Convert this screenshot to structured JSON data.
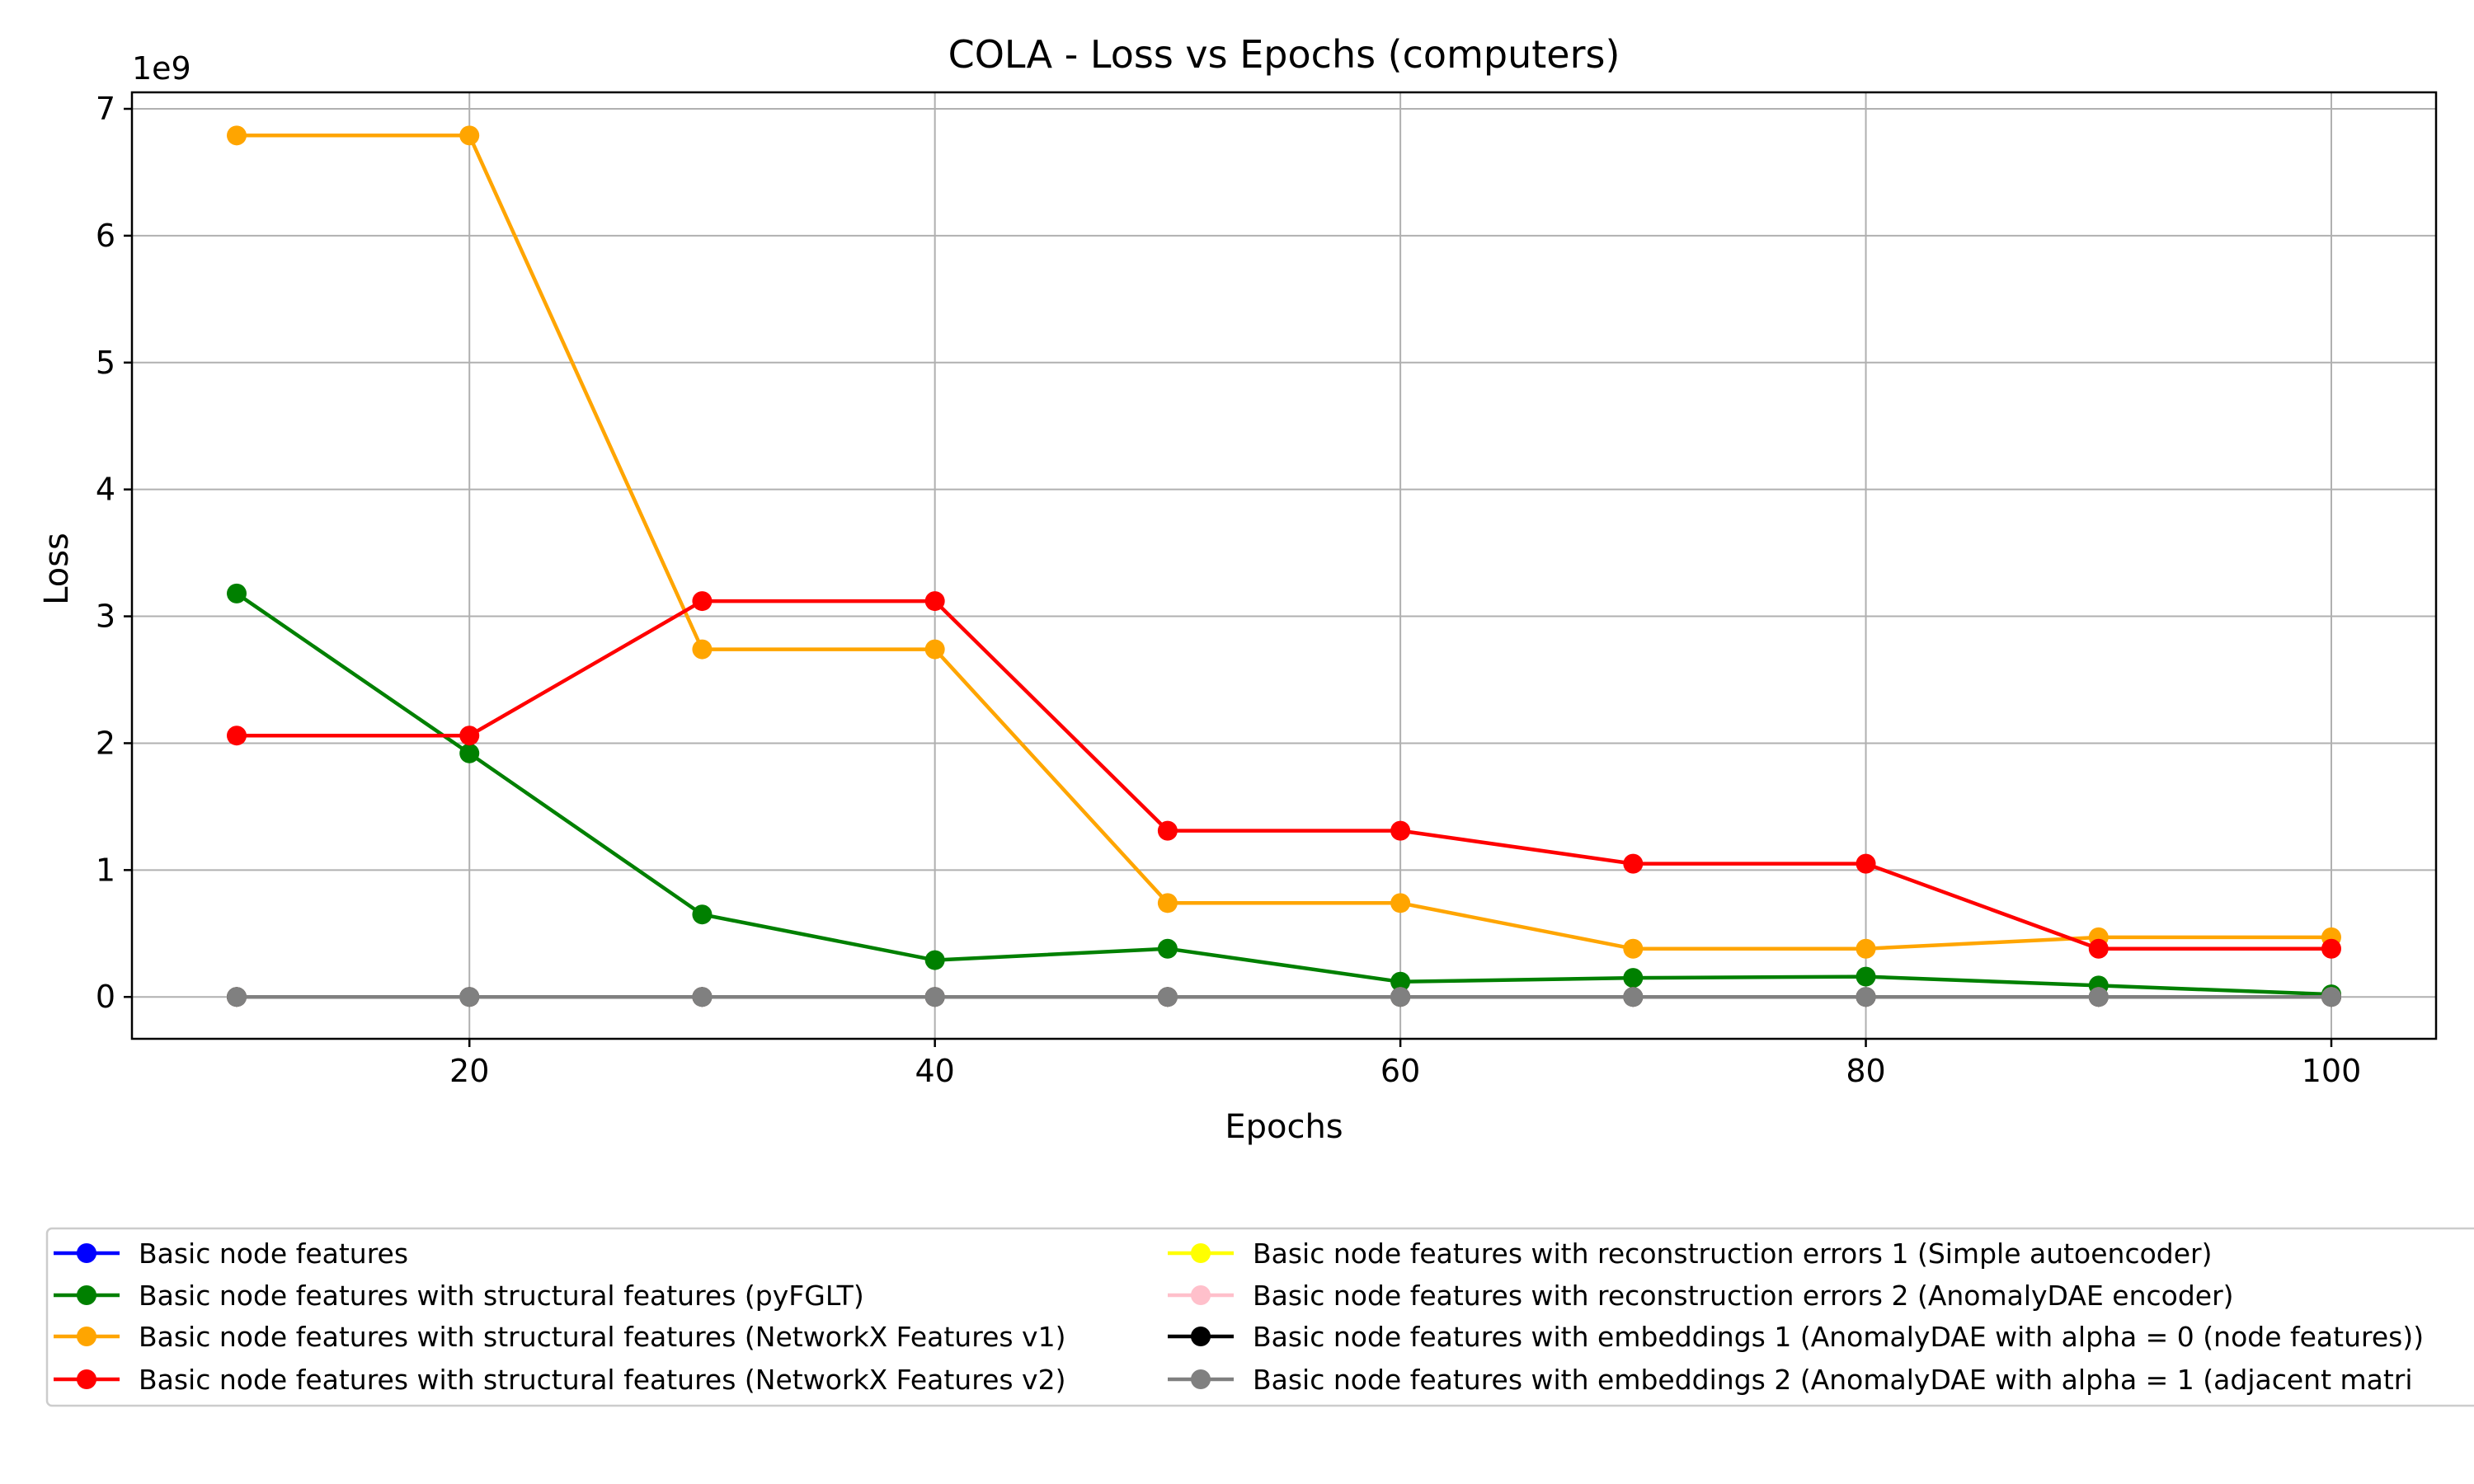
{
  "chart_data": {
    "type": "line",
    "title": "COLA - Loss vs Epochs (computers)",
    "xlabel": "Epochs",
    "ylabel": "Loss",
    "y_scale_label": "1e9",
    "xlim": [
      5.5,
      104.5
    ],
    "ylim": [
      -0.33,
      7.13
    ],
    "x_ticks": [
      20,
      40,
      60,
      80,
      100
    ],
    "x_tick_labels": [
      "20",
      "40",
      "60",
      "80",
      "100"
    ],
    "y_ticks": [
      0,
      1,
      2,
      3,
      4,
      5,
      6,
      7
    ],
    "y_tick_labels": [
      "0",
      "1",
      "2",
      "3",
      "4",
      "5",
      "6",
      "7"
    ],
    "grid": true,
    "legend_position": "bottom",
    "x": [
      10,
      20,
      30,
      40,
      50,
      60,
      70,
      80,
      90,
      100
    ],
    "series": [
      {
        "name": "Basic node features",
        "color": "#0000ff",
        "values": [
          0,
          0,
          0,
          0,
          0,
          0,
          0,
          0,
          0,
          0
        ]
      },
      {
        "name": "Basic node features with structural features (pyFGLT)",
        "color": "#008000",
        "values": [
          3.18,
          1.92,
          0.65,
          0.29,
          0.38,
          0.12,
          0.15,
          0.16,
          0.09,
          0.02
        ]
      },
      {
        "name": "Basic node features with structural features (NetworkX Features v1)",
        "color": "#ffa500",
        "values": [
          6.79,
          6.79,
          2.74,
          2.74,
          0.74,
          0.74,
          0.38,
          0.38,
          0.47,
          0.47
        ]
      },
      {
        "name": "Basic node features with structural features (NetworkX Features v2)",
        "color": "#ff0000",
        "values": [
          2.06,
          2.06,
          3.12,
          3.12,
          1.31,
          1.31,
          1.05,
          1.05,
          0.38,
          0.38
        ]
      },
      {
        "name": "Basic node features with reconstruction errors 1 (Simple autoencoder)",
        "color": "#ffff00",
        "values": [
          0,
          0,
          0,
          0,
          0,
          0,
          0,
          0,
          0,
          0
        ]
      },
      {
        "name": "Basic node features with reconstruction errors 2 (AnomalyDAE encoder)",
        "color": "#ffc0cb",
        "values": [
          0,
          0,
          0,
          0,
          0,
          0,
          0,
          0,
          0,
          0
        ]
      },
      {
        "name": "Basic node features with embeddings 1 (AnomalyDAE with alpha = 0 (node features))",
        "color": "#000000",
        "values": [
          0,
          0,
          0,
          0,
          0,
          0,
          0,
          0,
          0,
          0
        ]
      },
      {
        "name": "Basic node features with embeddings 2 (AnomalyDAE with alpha = 1 (adjacent matri",
        "color": "#808080",
        "values": [
          0,
          0,
          0,
          0,
          0,
          0,
          0,
          0,
          0,
          0
        ]
      }
    ]
  }
}
